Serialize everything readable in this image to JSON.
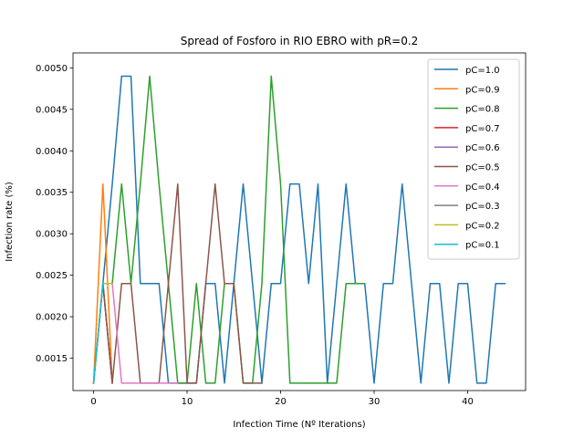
{
  "chart_data": {
    "type": "line",
    "title": "Spread of Fosforo in RIO EBRO with pR=0.2",
    "xlabel": "Infection Time (Nº Iterations)",
    "ylabel": "Infection rate (%)",
    "xlim": [
      -2.2,
      46.2
    ],
    "ylim": [
      0.00111,
      0.00518
    ],
    "xticks": [
      0,
      10,
      20,
      30,
      40
    ],
    "xtick_labels": [
      "0",
      "10",
      "20",
      "30",
      "40"
    ],
    "yticks": [
      0.0015,
      0.002,
      0.0025,
      0.003,
      0.0035,
      0.004,
      0.0045,
      0.005
    ],
    "ytick_labels": [
      "0.0015",
      "0.0020",
      "0.0025",
      "0.0030",
      "0.0035",
      "0.0040",
      "0.0045",
      "0.0050"
    ],
    "grid": false,
    "legend_position": "top-right",
    "series": [
      {
        "name": "pC=1.0",
        "color": "#1f77b4",
        "x": [
          0,
          1,
          2,
          3,
          4,
          5,
          6,
          7,
          8,
          9,
          10,
          11,
          12,
          13,
          14,
          15,
          16,
          17,
          18,
          19,
          20,
          21,
          22,
          23,
          24,
          25,
          26,
          27,
          28,
          29,
          30,
          31,
          32,
          33,
          34,
          35,
          36,
          37,
          38,
          39,
          40,
          41,
          42,
          43,
          44
        ],
        "y": [
          0.0012,
          0.0024,
          0.0036,
          0.0049,
          0.0049,
          0.0024,
          0.0024,
          0.0024,
          0.0012,
          0.0012,
          0.0012,
          0.0012,
          0.0024,
          0.0024,
          0.0012,
          0.0024,
          0.0036,
          0.0024,
          0.0012,
          0.0024,
          0.0024,
          0.0036,
          0.0036,
          0.0024,
          0.0036,
          0.0012,
          0.0024,
          0.0036,
          0.0024,
          0.0024,
          0.0012,
          0.0024,
          0.0024,
          0.0036,
          0.0024,
          0.0012,
          0.0024,
          0.0024,
          0.0012,
          0.0024,
          0.0024,
          0.0012,
          0.0012,
          0.0024,
          0.0024
        ]
      },
      {
        "name": "pC=0.9",
        "color": "#ff7f0e",
        "x": [
          0,
          1,
          2
        ],
        "y": [
          0.0012,
          0.0036,
          0.0012
        ]
      },
      {
        "name": "pC=0.8",
        "color": "#2ca02c",
        "x": [
          0,
          1,
          2,
          3,
          4,
          5,
          6,
          7,
          8,
          9,
          10,
          11,
          12,
          13,
          14,
          15,
          16,
          17,
          18,
          19,
          20,
          21,
          22,
          23,
          24,
          25,
          26,
          27,
          28,
          29
        ],
        "y": [
          0.0012,
          0.0024,
          0.0024,
          0.0036,
          0.0024,
          0.0036,
          0.0049,
          0.0036,
          0.0024,
          0.0012,
          0.0012,
          0.0024,
          0.0012,
          0.0012,
          0.0024,
          0.0024,
          0.0012,
          0.0012,
          0.0024,
          0.0049,
          0.0036,
          0.0012,
          0.0012,
          0.0012,
          0.0012,
          0.0012,
          0.0012,
          0.0024,
          0.0024,
          0.0024
        ]
      },
      {
        "name": "pC=0.7",
        "color": "#d62728",
        "x": [
          0,
          1,
          2
        ],
        "y": [
          0.0012,
          0.0024,
          0.0012
        ]
      },
      {
        "name": "pC=0.6",
        "color": "#9467bd",
        "x": [
          0,
          1,
          2
        ],
        "y": [
          0.0012,
          0.0024,
          0.0012
        ]
      },
      {
        "name": "pC=0.5",
        "color": "#8c564b",
        "x": [
          0,
          1,
          2,
          3,
          4,
          5,
          6,
          7,
          8,
          9,
          10,
          11,
          12,
          13,
          14,
          15,
          16,
          17,
          18
        ],
        "y": [
          0.0012,
          0.0024,
          0.0012,
          0.0024,
          0.0024,
          0.0012,
          0.0012,
          0.0012,
          0.0024,
          0.0036,
          0.0012,
          0.0012,
          0.0024,
          0.0036,
          0.0024,
          0.0024,
          0.0012,
          0.0012,
          0.0012
        ]
      },
      {
        "name": "pC=0.4",
        "color": "#e377c2",
        "x": [
          0,
          1,
          2,
          3,
          4,
          5,
          6,
          7,
          8,
          9
        ],
        "y": [
          0.0012,
          0.0024,
          0.0024,
          0.0012,
          0.0012,
          0.0012,
          0.0012,
          0.0012,
          0.0012,
          0.0012
        ]
      },
      {
        "name": "pC=0.3",
        "color": "#7f7f7f",
        "x": [
          0,
          1
        ],
        "y": [
          0.0012,
          0.0024
        ]
      },
      {
        "name": "pC=0.2",
        "color": "#bcbd22",
        "x": [
          0,
          1,
          2
        ],
        "y": [
          0.0012,
          0.0024,
          0.0024
        ]
      },
      {
        "name": "pC=0.1",
        "color": "#17becf",
        "x": [
          0,
          1
        ],
        "y": [
          0.0012,
          0.0024
        ]
      }
    ]
  }
}
